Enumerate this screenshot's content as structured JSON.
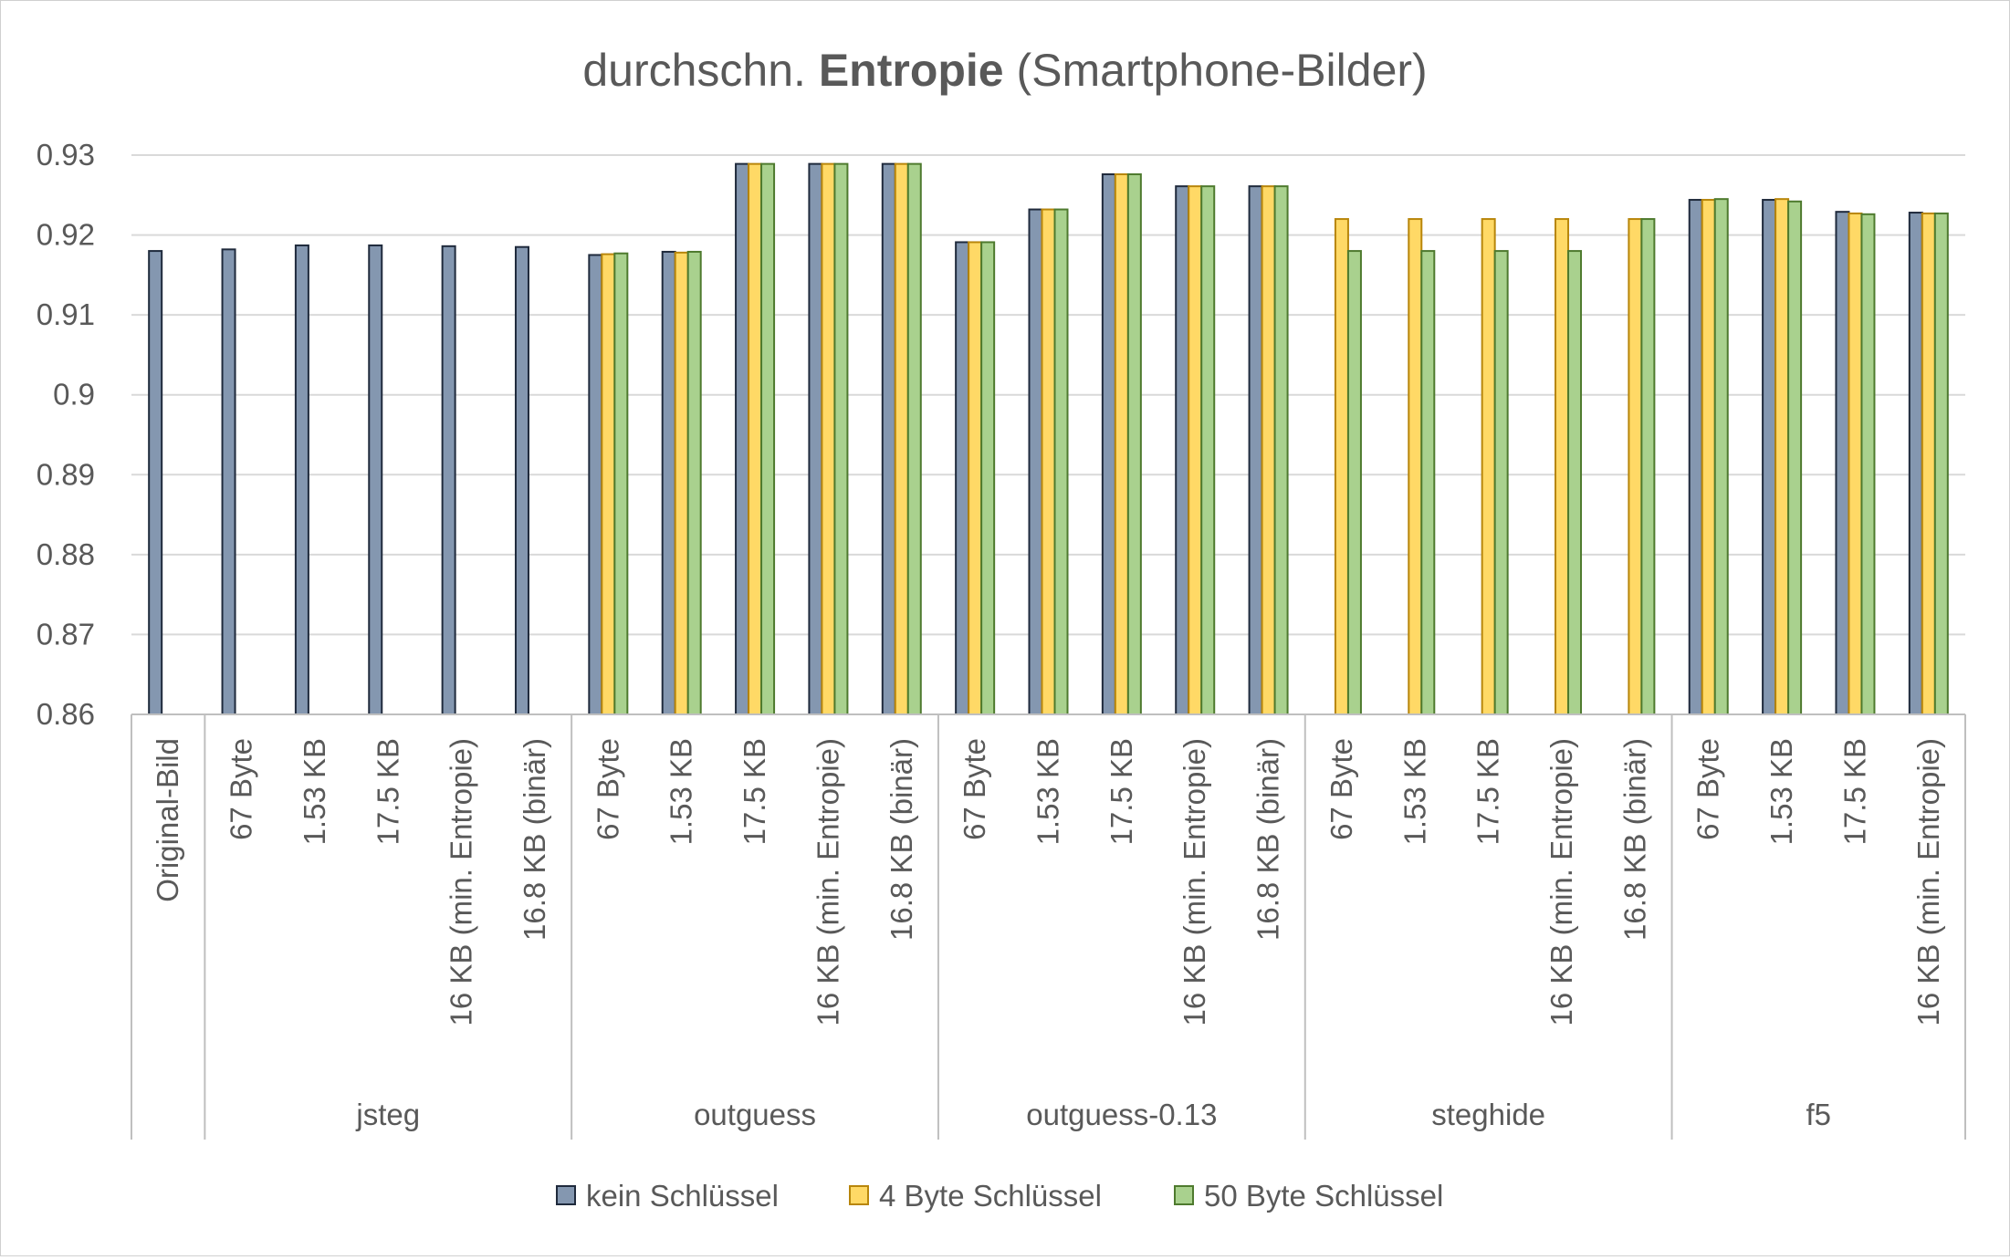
{
  "chart_data": {
    "type": "bar",
    "title": {
      "prefix": "durchschn. ",
      "bold": "Entropie",
      "suffix": " (Smartphone-Bilder)"
    },
    "xlabel": "",
    "ylabel": "",
    "ylim": [
      0.86,
      0.93
    ],
    "yticks": [
      0.86,
      0.87,
      0.88,
      0.89,
      0.9,
      0.91,
      0.92,
      0.93
    ],
    "ytick_labels": [
      "0.86",
      "0.87",
      "0.88",
      "0.89",
      "0.9",
      "0.91",
      "0.92",
      "0.93"
    ],
    "grid": true,
    "legend_position": "bottom",
    "series": [
      {
        "name": "kein Schlüssel",
        "color": "#8497B0",
        "stroke": "#1F2A3C"
      },
      {
        "name": "4 Byte Schlüssel",
        "color": "#FFD966",
        "stroke": "#B8860B"
      },
      {
        "name": "50 Byte Schlüssel",
        "color": "#A9D18E",
        "stroke": "#4E7A2E"
      }
    ],
    "groups": [
      {
        "name": "",
        "categories": [
          {
            "label": "Original-Bild",
            "values": [
              0.918,
              null,
              null
            ]
          }
        ]
      },
      {
        "name": "jsteg",
        "categories": [
          {
            "label": "67 Byte",
            "values": [
              0.9182,
              null,
              null
            ]
          },
          {
            "label": "1.53 KB",
            "values": [
              0.9187,
              null,
              null
            ]
          },
          {
            "label": "17.5 KB",
            "values": [
              0.9187,
              null,
              null
            ]
          },
          {
            "label": "16 KB (min. Entropie)",
            "values": [
              0.9186,
              null,
              null
            ]
          },
          {
            "label": "16.8 KB (binär)",
            "values": [
              0.9185,
              null,
              null
            ]
          }
        ]
      },
      {
        "name": "outguess",
        "categories": [
          {
            "label": "67 Byte",
            "values": [
              0.9175,
              0.9176,
              0.9177
            ]
          },
          {
            "label": "1.53 KB",
            "values": [
              0.9179,
              0.9178,
              0.9179
            ]
          },
          {
            "label": "17.5 KB",
            "values": [
              0.9289,
              0.9289,
              0.9289
            ]
          },
          {
            "label": "16 KB (min. Entropie)",
            "values": [
              0.9289,
              0.9289,
              0.9289
            ]
          },
          {
            "label": "16.8 KB (binär)",
            "values": [
              0.9289,
              0.9289,
              0.9289
            ]
          }
        ]
      },
      {
        "name": "outguess-0.13",
        "categories": [
          {
            "label": "67 Byte",
            "values": [
              0.9191,
              0.9191,
              0.9191
            ]
          },
          {
            "label": "1.53 KB",
            "values": [
              0.9232,
              0.9232,
              0.9232
            ]
          },
          {
            "label": "17.5 KB",
            "values": [
              0.9276,
              0.9276,
              0.9276
            ]
          },
          {
            "label": "16 KB (min. Entropie)",
            "values": [
              0.9261,
              0.9261,
              0.9261
            ]
          },
          {
            "label": "16.8 KB (binär)",
            "values": [
              0.9261,
              0.9261,
              0.9261
            ]
          }
        ]
      },
      {
        "name": "steghide",
        "categories": [
          {
            "label": "67 Byte",
            "values": [
              null,
              0.922,
              0.918
            ]
          },
          {
            "label": "1.53 KB",
            "values": [
              null,
              0.922,
              0.918
            ]
          },
          {
            "label": "17.5 KB",
            "values": [
              null,
              0.922,
              0.918
            ]
          },
          {
            "label": "16 KB (min. Entropie)",
            "values": [
              null,
              0.922,
              0.918
            ]
          },
          {
            "label": "16.8 KB (binär)",
            "values": [
              null,
              0.922,
              0.922
            ]
          }
        ]
      },
      {
        "name": "f5",
        "categories": [
          {
            "label": "67 Byte",
            "values": [
              0.9244,
              0.9244,
              0.9245
            ]
          },
          {
            "label": "1.53 KB",
            "values": [
              0.9244,
              0.9245,
              0.9242
            ]
          },
          {
            "label": "17.5 KB",
            "values": [
              0.9229,
              0.9227,
              0.9226
            ]
          },
          {
            "label": "16 KB (min. Entropie)",
            "values": [
              0.9228,
              0.9227,
              0.9227
            ]
          }
        ]
      }
    ]
  }
}
